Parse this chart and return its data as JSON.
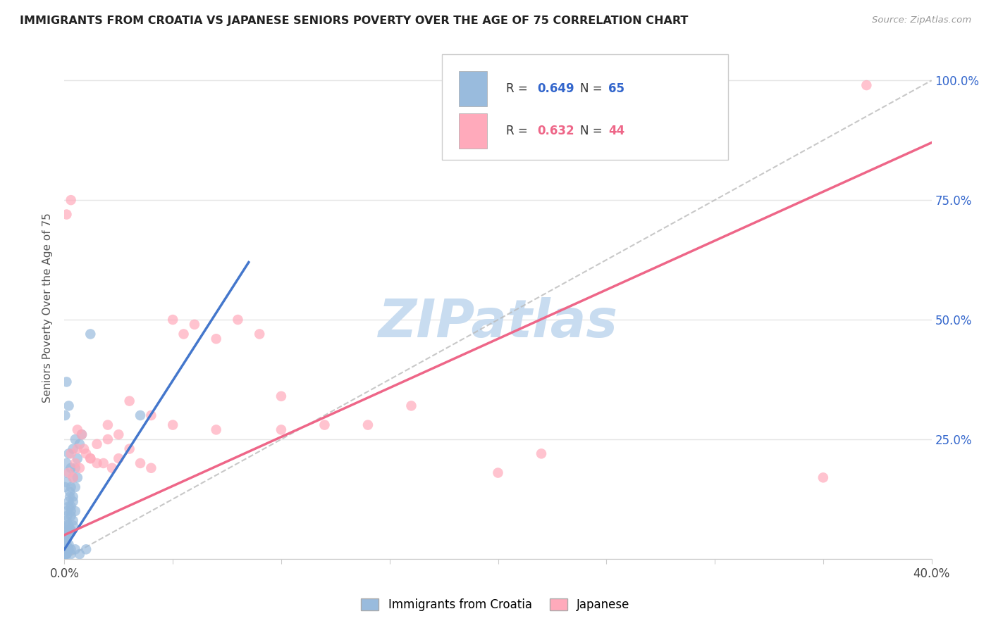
{
  "title": "IMMIGRANTS FROM CROATIA VS JAPANESE SENIORS POVERTY OVER THE AGE OF 75 CORRELATION CHART",
  "source": "Source: ZipAtlas.com",
  "ylabel": "Seniors Poverty Over the Age of 75",
  "xlim": [
    0.0,
    0.4
  ],
  "ylim": [
    0.0,
    1.05
  ],
  "yticks": [
    0.0,
    0.25,
    0.5,
    0.75,
    1.0
  ],
  "ytick_labels": [
    "",
    "25.0%",
    "50.0%",
    "75.0%",
    "100.0%"
  ],
  "xtick_positions": [
    0.0,
    0.05,
    0.1,
    0.15,
    0.2,
    0.25,
    0.3,
    0.35,
    0.4
  ],
  "legend_R1": "0.649",
  "legend_N1": "65",
  "legend_R2": "0.632",
  "legend_N2": "44",
  "blue_color": "#99BBDD",
  "pink_color": "#FFAABB",
  "blue_line_color": "#4477CC",
  "pink_line_color": "#EE6688",
  "blue_line": {
    "x0": 0.0,
    "y0": 0.02,
    "x1": 0.085,
    "y1": 0.62
  },
  "pink_line": {
    "x0": 0.0,
    "y0": 0.05,
    "x1": 0.4,
    "y1": 0.87
  },
  "blue_scatter_x": [
    0.0003,
    0.0005,
    0.0008,
    0.001,
    0.001,
    0.0012,
    0.0015,
    0.002,
    0.002,
    0.0025,
    0.003,
    0.003,
    0.003,
    0.004,
    0.004,
    0.005,
    0.005,
    0.006,
    0.0003,
    0.0005,
    0.0007,
    0.001,
    0.001,
    0.0013,
    0.002,
    0.002,
    0.0025,
    0.003,
    0.003,
    0.004,
    0.004,
    0.005,
    0.006,
    0.007,
    0.008,
    0.0003,
    0.0005,
    0.001,
    0.001,
    0.002,
    0.002,
    0.003,
    0.003,
    0.004,
    0.0003,
    0.0005,
    0.001,
    0.001,
    0.002,
    0.003,
    0.004,
    0.005,
    0.0003,
    0.0005,
    0.001,
    0.002,
    0.003,
    0.005,
    0.007,
    0.01,
    0.0003,
    0.001,
    0.002,
    0.035,
    0.012
  ],
  "blue_scatter_y": [
    0.02,
    0.04,
    0.06,
    0.08,
    0.03,
    0.1,
    0.05,
    0.12,
    0.07,
    0.14,
    0.09,
    0.11,
    0.06,
    0.13,
    0.08,
    0.15,
    0.1,
    0.17,
    0.01,
    0.03,
    0.05,
    0.07,
    0.02,
    0.09,
    0.11,
    0.06,
    0.13,
    0.15,
    0.1,
    0.17,
    0.12,
    0.19,
    0.21,
    0.24,
    0.26,
    0.01,
    0.02,
    0.04,
    0.01,
    0.05,
    0.03,
    0.06,
    0.02,
    0.07,
    0.15,
    0.18,
    0.2,
    0.16,
    0.22,
    0.19,
    0.23,
    0.25,
    0.01,
    0.01,
    0.01,
    0.02,
    0.01,
    0.02,
    0.01,
    0.02,
    0.3,
    0.37,
    0.32,
    0.3,
    0.47
  ],
  "pink_scatter_x": [
    0.001,
    0.002,
    0.003,
    0.004,
    0.005,
    0.006,
    0.007,
    0.008,
    0.01,
    0.012,
    0.015,
    0.018,
    0.02,
    0.022,
    0.025,
    0.03,
    0.035,
    0.04,
    0.05,
    0.055,
    0.06,
    0.07,
    0.08,
    0.09,
    0.1,
    0.12,
    0.14,
    0.16,
    0.2,
    0.22,
    0.003,
    0.006,
    0.009,
    0.012,
    0.015,
    0.02,
    0.025,
    0.03,
    0.04,
    0.05,
    0.07,
    0.1,
    0.35,
    0.37
  ],
  "pink_scatter_y": [
    0.72,
    0.18,
    0.22,
    0.17,
    0.2,
    0.23,
    0.19,
    0.26,
    0.22,
    0.21,
    0.24,
    0.2,
    0.25,
    0.19,
    0.21,
    0.23,
    0.2,
    0.19,
    0.5,
    0.47,
    0.49,
    0.46,
    0.5,
    0.47,
    0.34,
    0.28,
    0.28,
    0.32,
    0.18,
    0.22,
    0.75,
    0.27,
    0.23,
    0.21,
    0.2,
    0.28,
    0.26,
    0.33,
    0.3,
    0.28,
    0.27,
    0.27,
    0.17,
    0.99
  ],
  "watermark_text": "ZIPatlas",
  "watermark_color": "#C8DCF0",
  "background_color": "#FFFFFF",
  "grid_color": "#E5E5E5"
}
